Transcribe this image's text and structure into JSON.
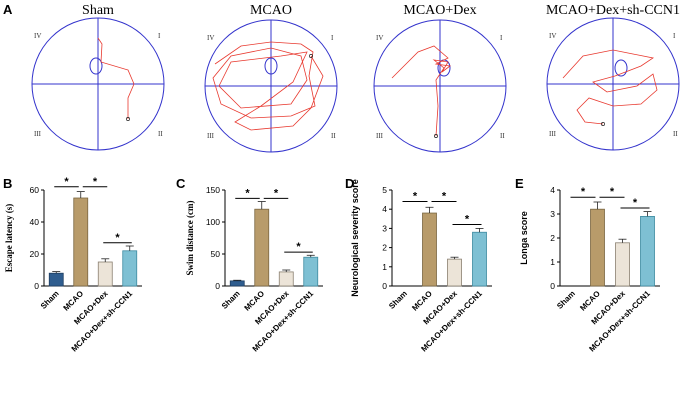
{
  "panel_a": {
    "letter": "A",
    "titles": [
      "Sham",
      "MCAO",
      "MCAO+Dex",
      "MCAO+Dex+sh-CCN1"
    ],
    "quadrants": [
      "IV",
      "I",
      "III",
      "II"
    ]
  },
  "chart_data": [
    {
      "type": "bar",
      "panel": "B",
      "ylabel": "Escape latency (s)",
      "categories": [
        "Sham",
        "MCAO",
        "MCAO+Dex",
        "MCAO+Dex+sh-CCN1"
      ],
      "values": [
        8,
        55,
        15,
        22
      ],
      "errors": [
        1,
        4,
        2,
        3
      ],
      "ylim": [
        0,
        60
      ],
      "yticks": [
        0,
        20,
        40,
        60
      ],
      "significance": [
        {
          "from": 0,
          "to": 1,
          "label": "*",
          "y": 62
        },
        {
          "from": 1,
          "to": 2,
          "label": "*",
          "y": 62
        },
        {
          "from": 2,
          "to": 3,
          "label": "*",
          "y": 27
        }
      ]
    },
    {
      "type": "bar",
      "panel": "C",
      "ylabel": "Swim distance (cm)",
      "categories": [
        "Sham",
        "MCAO",
        "MCAO+Dex",
        "MCAO+Dex+sh-CCN1"
      ],
      "values": [
        8,
        120,
        22,
        45
      ],
      "errors": [
        1,
        12,
        3,
        3
      ],
      "ylim": [
        0,
        150
      ],
      "yticks": [
        0,
        50,
        100,
        150
      ],
      "significance": [
        {
          "from": 0,
          "to": 1,
          "label": "*",
          "y": 137
        },
        {
          "from": 1,
          "to": 2,
          "label": "*",
          "y": 137
        },
        {
          "from": 2,
          "to": 3,
          "label": "*",
          "y": 53
        }
      ]
    },
    {
      "type": "bar",
      "panel": "D",
      "ylabel": "Neurological severity score",
      "categories": [
        "Sham",
        "MCAO",
        "MCAO+Dex",
        "MCAO+Dex+sh-CCN1"
      ],
      "values": [
        0,
        3.8,
        1.4,
        2.8
      ],
      "errors": [
        0,
        0.3,
        0.1,
        0.2
      ],
      "ylim": [
        0,
        5
      ],
      "yticks": [
        0,
        1,
        2,
        3,
        4,
        5
      ],
      "significance": [
        {
          "from": 0,
          "to": 1,
          "label": "*",
          "y": 4.4
        },
        {
          "from": 1,
          "to": 2,
          "label": "*",
          "y": 4.4
        },
        {
          "from": 2,
          "to": 3,
          "label": "*",
          "y": 3.2
        }
      ]
    },
    {
      "type": "bar",
      "panel": "E",
      "ylabel": "Longa score",
      "categories": [
        "Sham",
        "MCAO",
        "MCAO+Dex",
        "MCAO+Dex+sh-CCN1"
      ],
      "values": [
        0,
        3.2,
        1.8,
        2.9
      ],
      "errors": [
        0,
        0.3,
        0.15,
        0.2
      ],
      "ylim": [
        0,
        4
      ],
      "yticks": [
        0,
        1,
        2,
        3,
        4
      ],
      "significance": [
        {
          "from": 0,
          "to": 1,
          "label": "*",
          "y": 3.7
        },
        {
          "from": 1,
          "to": 2,
          "label": "*",
          "y": 3.7
        },
        {
          "from": 2,
          "to": 3,
          "label": "*",
          "y": 3.25
        }
      ]
    }
  ],
  "colors": {
    "sham": "#2f5d8f",
    "mcao": "#b89b6a",
    "dex": "#ece4d8",
    "shccn1": "#7ec0d3",
    "maze": "#3333cc",
    "path": "#e8392f"
  }
}
